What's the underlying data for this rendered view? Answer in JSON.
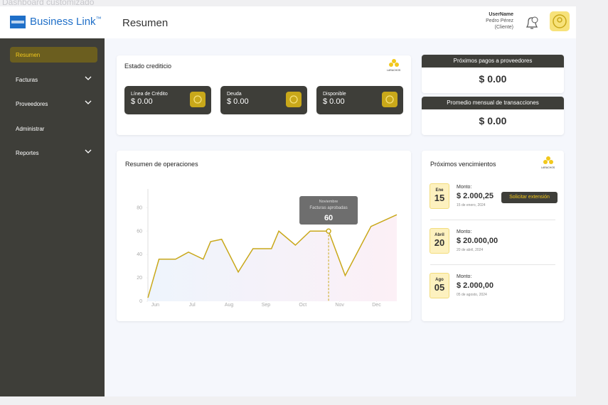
{
  "page_caption": "Dashboard customizado",
  "header": {
    "brand": "Business Link",
    "brand_mark": "™",
    "page_title": "Resumen",
    "user": {
      "name": "UserName",
      "full_name": "Pedro Pérez",
      "role": "(Cliente)"
    }
  },
  "sidebar": {
    "items": [
      {
        "label": "Resumen",
        "active": true,
        "expandable": false
      },
      {
        "label": "Facturas",
        "active": false,
        "expandable": true
      },
      {
        "label": "Proveedores",
        "active": false,
        "expandable": true
      },
      {
        "label": "Administrar",
        "active": false,
        "expandable": false
      },
      {
        "label": "Reportes",
        "active": false,
        "expandable": true
      }
    ]
  },
  "credit": {
    "title": "Estado crediticio",
    "logo": "LARACHOS",
    "cards": [
      {
        "label": "Línea de Crédito",
        "value": "$ 0.00"
      },
      {
        "label": "Deuda",
        "value": "$ 0.00"
      },
      {
        "label": "Disponible",
        "value": "$ 0.00"
      }
    ]
  },
  "summary": [
    {
      "title": "Próximos pagos a proveedores",
      "value": "$ 0.00"
    },
    {
      "title": "Promedio mensual de transacciones",
      "value": "$ 0.00"
    }
  ],
  "chart": {
    "type": "line",
    "title": "Resumen de operaciones",
    "color": "#c9a81a",
    "x": [
      -0.2,
      0.1,
      0.55,
      0.9,
      1.3,
      1.5,
      1.8,
      2.25,
      2.65,
      3.15,
      3.35,
      3.8,
      4.2,
      4.7,
      5.15,
      5.85,
      6.55
    ],
    "values": [
      3,
      36,
      36,
      42,
      36,
      51,
      53,
      25,
      45,
      45,
      60,
      48,
      60,
      60,
      22,
      64,
      74
    ],
    "xlim": [
      -0.2,
      6.55
    ],
    "ylim": [
      0,
      96
    ],
    "yticks": [
      0,
      20,
      40,
      60,
      80
    ],
    "xticks": [
      {
        "value": 0,
        "label": "Jun"
      },
      {
        "value": 1,
        "label": "Jul"
      },
      {
        "value": 2,
        "label": "Aug"
      },
      {
        "value": 3,
        "label": "Sep"
      },
      {
        "value": 4,
        "label": "Oct"
      },
      {
        "value": 5,
        "label": "Nov"
      },
      {
        "value": 6,
        "label": "Dec"
      }
    ],
    "tooltip": {
      "title": "Noviembre",
      "label": "Facturas aprobadas",
      "value": 60
    }
  },
  "due": {
    "title": "Próximos vencimientos",
    "logo": "LARACHOS",
    "items": [
      {
        "month": "Ene",
        "day": "15",
        "amount_label": "Monto:",
        "amount": "$ 2.000,25",
        "date": "15 de enero, 2024",
        "action": "Solicitar extensión"
      },
      {
        "month": "Abril",
        "day": "20",
        "amount_label": "Monto:",
        "amount": "$ 20.000,00",
        "date": "20 de abril, 2024"
      },
      {
        "month": "Ago",
        "day": "05",
        "amount_label": "Monto:",
        "amount": "$ 2.000,00",
        "date": "05 de agosto, 2024"
      }
    ]
  }
}
